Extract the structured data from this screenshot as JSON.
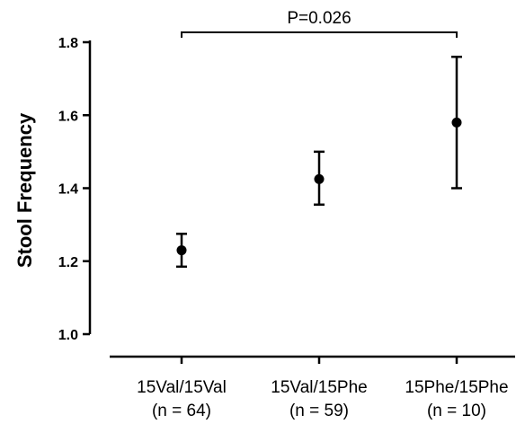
{
  "chart_data": {
    "type": "scatter",
    "ylabel": "Stool Frequency",
    "xlabel": "",
    "ylim": [
      1.0,
      1.8
    ],
    "yticks": [
      "1.0",
      "1.2",
      "1.4",
      "1.6",
      "1.8"
    ],
    "yticks_values": [
      1.0,
      1.2,
      1.4,
      1.6,
      1.8
    ],
    "categories": [
      {
        "line1": "15Val/15Val",
        "line2": "(n = 64)"
      },
      {
        "line1": "15Val/15Phe",
        "line2": "(n = 59)"
      },
      {
        "line1": "15Phe/15Phe",
        "line2": "(n = 10)"
      }
    ],
    "values": [
      1.23,
      1.425,
      1.58
    ],
    "error_low": [
      1.185,
      1.355,
      1.4
    ],
    "error_high": [
      1.275,
      1.5,
      1.76
    ],
    "annotation": {
      "text": "P=0.026",
      "from_index": 0,
      "to_index": 2
    },
    "grid": false
  }
}
